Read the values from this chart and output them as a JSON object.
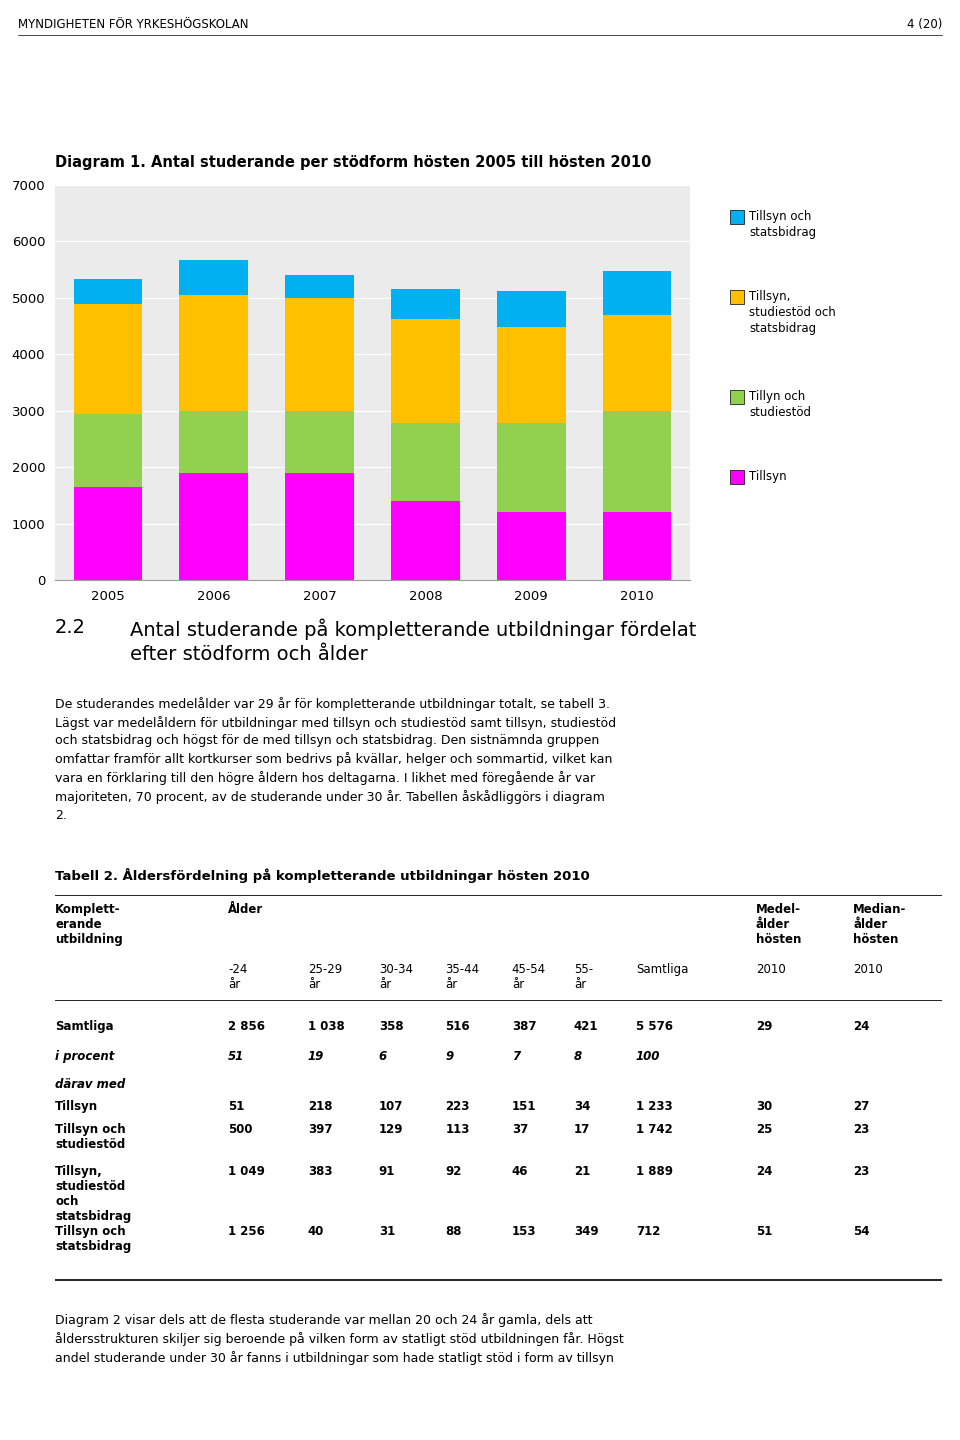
{
  "title_diagram": "Diagram 1. Antal studerande per stödform hösten 2005 till hösten 2010",
  "header": "MYNDIGHETEN FÖR YRKESHÖGSKOLAN",
  "header_right": "4 (20)",
  "years": [
    2005,
    2006,
    2007,
    2008,
    2009,
    2010
  ],
  "series": {
    "Tillsyn": [
      1650,
      1900,
      1900,
      1400,
      1200,
      1200
    ],
    "Tillyn och studiestöd": [
      1300,
      1100,
      1100,
      1380,
      1580,
      1800
    ],
    "Tillsyn, studiestöd och statsbidrag": [
      1950,
      2050,
      2000,
      1850,
      1700,
      1700
    ],
    "Tillsyn och statsbidrag": [
      430,
      620,
      400,
      520,
      650,
      780
    ]
  },
  "colors": {
    "Tillsyn": "#FF00FF",
    "Tillyn och studiestöd": "#92D050",
    "Tillsyn, studiestöd och statsbidrag": "#FFC000",
    "Tillsyn och statsbidrag": "#00B0F0"
  },
  "ylim": [
    0,
    7000
  ],
  "yticks": [
    0,
    1000,
    2000,
    3000,
    4000,
    5000,
    6000,
    7000
  ],
  "background_color": "#FFFFFF",
  "plot_bg_color": "#EBEBEB"
}
